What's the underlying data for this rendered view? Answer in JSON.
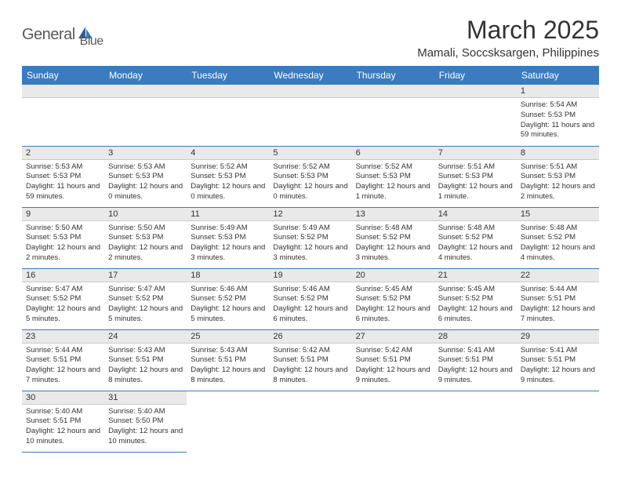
{
  "brand": {
    "name1": "General",
    "name2": "Blue"
  },
  "title": "March 2025",
  "location": "Mamali, Soccsksargen, Philippines",
  "colors": {
    "header_bg": "#3b7bbf",
    "daynum_bg": "#e9e9e9",
    "text": "#333333",
    "brand_gray": "#58595b",
    "brand_blue": "#3b7bbf"
  },
  "daysOfWeek": [
    "Sunday",
    "Monday",
    "Tuesday",
    "Wednesday",
    "Thursday",
    "Friday",
    "Saturday"
  ],
  "weeks": [
    [
      null,
      null,
      null,
      null,
      null,
      null,
      {
        "n": "1",
        "sr": "Sunrise: 5:54 AM",
        "ss": "Sunset: 5:53 PM",
        "dl": "Daylight: 11 hours and 59 minutes."
      }
    ],
    [
      {
        "n": "2",
        "sr": "Sunrise: 5:53 AM",
        "ss": "Sunset: 5:53 PM",
        "dl": "Daylight: 11 hours and 59 minutes."
      },
      {
        "n": "3",
        "sr": "Sunrise: 5:53 AM",
        "ss": "Sunset: 5:53 PM",
        "dl": "Daylight: 12 hours and 0 minutes."
      },
      {
        "n": "4",
        "sr": "Sunrise: 5:52 AM",
        "ss": "Sunset: 5:53 PM",
        "dl": "Daylight: 12 hours and 0 minutes."
      },
      {
        "n": "5",
        "sr": "Sunrise: 5:52 AM",
        "ss": "Sunset: 5:53 PM",
        "dl": "Daylight: 12 hours and 0 minutes."
      },
      {
        "n": "6",
        "sr": "Sunrise: 5:52 AM",
        "ss": "Sunset: 5:53 PM",
        "dl": "Daylight: 12 hours and 1 minute."
      },
      {
        "n": "7",
        "sr": "Sunrise: 5:51 AM",
        "ss": "Sunset: 5:53 PM",
        "dl": "Daylight: 12 hours and 1 minute."
      },
      {
        "n": "8",
        "sr": "Sunrise: 5:51 AM",
        "ss": "Sunset: 5:53 PM",
        "dl": "Daylight: 12 hours and 2 minutes."
      }
    ],
    [
      {
        "n": "9",
        "sr": "Sunrise: 5:50 AM",
        "ss": "Sunset: 5:53 PM",
        "dl": "Daylight: 12 hours and 2 minutes."
      },
      {
        "n": "10",
        "sr": "Sunrise: 5:50 AM",
        "ss": "Sunset: 5:53 PM",
        "dl": "Daylight: 12 hours and 2 minutes."
      },
      {
        "n": "11",
        "sr": "Sunrise: 5:49 AM",
        "ss": "Sunset: 5:53 PM",
        "dl": "Daylight: 12 hours and 3 minutes."
      },
      {
        "n": "12",
        "sr": "Sunrise: 5:49 AM",
        "ss": "Sunset: 5:52 PM",
        "dl": "Daylight: 12 hours and 3 minutes."
      },
      {
        "n": "13",
        "sr": "Sunrise: 5:48 AM",
        "ss": "Sunset: 5:52 PM",
        "dl": "Daylight: 12 hours and 3 minutes."
      },
      {
        "n": "14",
        "sr": "Sunrise: 5:48 AM",
        "ss": "Sunset: 5:52 PM",
        "dl": "Daylight: 12 hours and 4 minutes."
      },
      {
        "n": "15",
        "sr": "Sunrise: 5:48 AM",
        "ss": "Sunset: 5:52 PM",
        "dl": "Daylight: 12 hours and 4 minutes."
      }
    ],
    [
      {
        "n": "16",
        "sr": "Sunrise: 5:47 AM",
        "ss": "Sunset: 5:52 PM",
        "dl": "Daylight: 12 hours and 5 minutes."
      },
      {
        "n": "17",
        "sr": "Sunrise: 5:47 AM",
        "ss": "Sunset: 5:52 PM",
        "dl": "Daylight: 12 hours and 5 minutes."
      },
      {
        "n": "18",
        "sr": "Sunrise: 5:46 AM",
        "ss": "Sunset: 5:52 PM",
        "dl": "Daylight: 12 hours and 5 minutes."
      },
      {
        "n": "19",
        "sr": "Sunrise: 5:46 AM",
        "ss": "Sunset: 5:52 PM",
        "dl": "Daylight: 12 hours and 6 minutes."
      },
      {
        "n": "20",
        "sr": "Sunrise: 5:45 AM",
        "ss": "Sunset: 5:52 PM",
        "dl": "Daylight: 12 hours and 6 minutes."
      },
      {
        "n": "21",
        "sr": "Sunrise: 5:45 AM",
        "ss": "Sunset: 5:52 PM",
        "dl": "Daylight: 12 hours and 6 minutes."
      },
      {
        "n": "22",
        "sr": "Sunrise: 5:44 AM",
        "ss": "Sunset: 5:51 PM",
        "dl": "Daylight: 12 hours and 7 minutes."
      }
    ],
    [
      {
        "n": "23",
        "sr": "Sunrise: 5:44 AM",
        "ss": "Sunset: 5:51 PM",
        "dl": "Daylight: 12 hours and 7 minutes."
      },
      {
        "n": "24",
        "sr": "Sunrise: 5:43 AM",
        "ss": "Sunset: 5:51 PM",
        "dl": "Daylight: 12 hours and 8 minutes."
      },
      {
        "n": "25",
        "sr": "Sunrise: 5:43 AM",
        "ss": "Sunset: 5:51 PM",
        "dl": "Daylight: 12 hours and 8 minutes."
      },
      {
        "n": "26",
        "sr": "Sunrise: 5:42 AM",
        "ss": "Sunset: 5:51 PM",
        "dl": "Daylight: 12 hours and 8 minutes."
      },
      {
        "n": "27",
        "sr": "Sunrise: 5:42 AM",
        "ss": "Sunset: 5:51 PM",
        "dl": "Daylight: 12 hours and 9 minutes."
      },
      {
        "n": "28",
        "sr": "Sunrise: 5:41 AM",
        "ss": "Sunset: 5:51 PM",
        "dl": "Daylight: 12 hours and 9 minutes."
      },
      {
        "n": "29",
        "sr": "Sunrise: 5:41 AM",
        "ss": "Sunset: 5:51 PM",
        "dl": "Daylight: 12 hours and 9 minutes."
      }
    ],
    [
      {
        "n": "30",
        "sr": "Sunrise: 5:40 AM",
        "ss": "Sunset: 5:51 PM",
        "dl": "Daylight: 12 hours and 10 minutes."
      },
      {
        "n": "31",
        "sr": "Sunrise: 5:40 AM",
        "ss": "Sunset: 5:50 PM",
        "dl": "Daylight: 12 hours and 10 minutes."
      },
      null,
      null,
      null,
      null,
      null
    ]
  ]
}
